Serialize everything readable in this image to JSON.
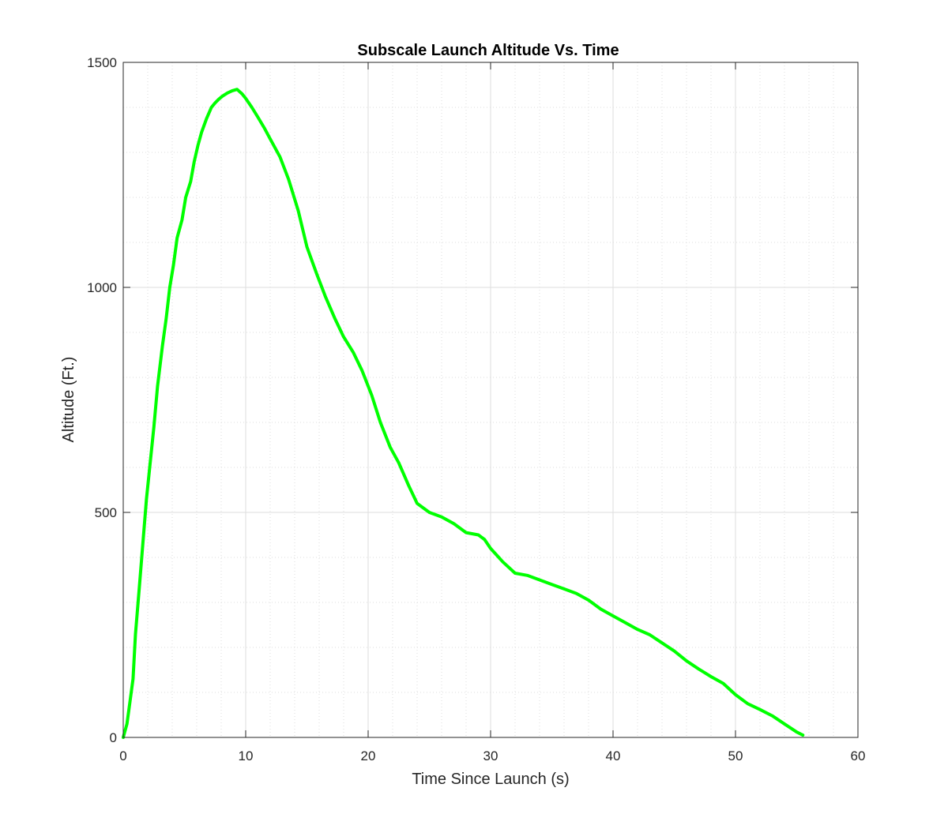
{
  "chart_data": {
    "type": "line",
    "title": "Subscale Launch Altitude Vs. Time",
    "xlabel": "Time Since Launch (s)",
    "ylabel": "Altitude (Ft.)",
    "xlim": [
      0,
      60
    ],
    "ylim": [
      0,
      1500
    ],
    "xticks": [
      0,
      10,
      20,
      30,
      40,
      50,
      60
    ],
    "yticks": [
      0,
      500,
      1000,
      1500
    ],
    "xtick_labels": [
      "0",
      "10",
      "20",
      "30",
      "40",
      "50",
      "60"
    ],
    "ytick_labels": [
      "0",
      "500",
      "1000",
      "1500"
    ],
    "grid": true,
    "minor_grid": true,
    "series": [
      {
        "color": "#00ff00",
        "x": [
          0,
          0.3,
          0.5,
          0.8,
          1.0,
          1.3,
          1.6,
          1.9,
          2.2,
          2.5,
          2.8,
          3.2,
          3.5,
          3.8,
          4.1,
          4.4,
          4.8,
          5.1,
          5.5,
          5.8,
          6.1,
          6.4,
          6.8,
          7.2,
          7.5,
          7.8,
          8.1,
          8.5,
          8.9,
          9.3,
          9.7,
          10.0,
          10.5,
          11.0,
          11.5,
          12.0,
          12.8,
          13.5,
          14.3,
          15.0,
          15.8,
          16.5,
          17.3,
          18.0,
          18.8,
          19.5,
          20.3,
          21.0,
          21.8,
          22.5,
          23.3,
          24.0,
          25.0,
          26.0,
          27.0,
          28.0,
          29.0,
          29.5,
          30.0,
          31.0,
          32.0,
          33.0,
          34.0,
          35.0,
          36.0,
          37.0,
          38.0,
          39.0,
          40.0,
          41.0,
          42.0,
          43.0,
          44.0,
          45.0,
          46.0,
          47.0,
          48.0,
          49.0,
          50.0,
          51.0,
          52.0,
          53.0,
          54.0,
          55.0,
          55.5
        ],
        "y": [
          0,
          30,
          70,
          130,
          230,
          330,
          430,
          530,
          610,
          690,
          780,
          870,
          930,
          1000,
          1050,
          1110,
          1150,
          1200,
          1235,
          1280,
          1315,
          1345,
          1375,
          1400,
          1410,
          1418,
          1425,
          1432,
          1437,
          1440,
          1430,
          1420,
          1400,
          1378,
          1355,
          1330,
          1290,
          1240,
          1170,
          1090,
          1030,
          980,
          930,
          890,
          855,
          815,
          760,
          700,
          645,
          610,
          560,
          520,
          500,
          490,
          475,
          455,
          450,
          440,
          420,
          390,
          365,
          360,
          350,
          340,
          330,
          320,
          305,
          285,
          270,
          255,
          240,
          228,
          210,
          192,
          170,
          152,
          135,
          120,
          95,
          75,
          62,
          48,
          30,
          12,
          5
        ]
      }
    ]
  }
}
